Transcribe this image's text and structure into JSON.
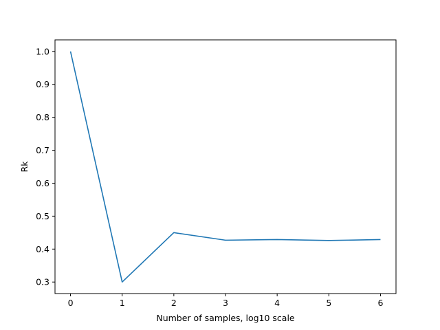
{
  "chart_data": {
    "type": "line",
    "title": "",
    "xlabel": "Number of samples, log10 scale",
    "ylabel": "Rk",
    "xlim": [
      -0.3,
      6.3
    ],
    "ylim": [
      0.265,
      1.035
    ],
    "xticks": [
      0,
      1,
      2,
      3,
      4,
      5,
      6
    ],
    "xtick_labels": [
      "0",
      "1",
      "2",
      "3",
      "4",
      "5",
      "6"
    ],
    "yticks": [
      0.3,
      0.4,
      0.5,
      0.6,
      0.7,
      0.8,
      0.9,
      1.0
    ],
    "ytick_labels": [
      "0.3",
      "0.4",
      "0.5",
      "0.6",
      "0.7",
      "0.8",
      "0.9",
      "1.0"
    ],
    "grid": false,
    "series": [
      {
        "name": "Rk",
        "color": "#1f77b4",
        "x": [
          0,
          1,
          2,
          3,
          4,
          5,
          6
        ],
        "y": [
          1.0,
          0.3,
          0.45,
          0.427,
          0.429,
          0.426,
          0.429
        ]
      }
    ]
  }
}
